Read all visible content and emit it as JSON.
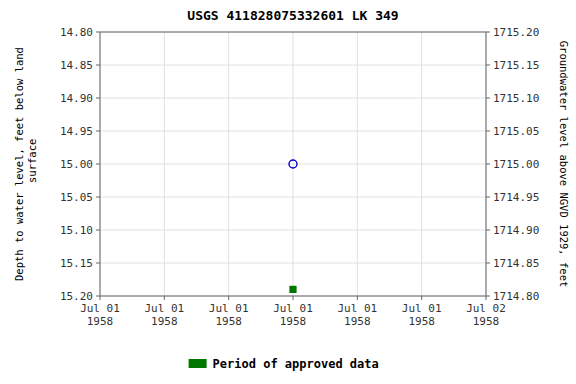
{
  "chart_data": {
    "type": "scatter",
    "title": "USGS 411828075332601 LK   349",
    "ylabel": "Depth to water level, feet below land\n surface",
    "y2label": "Groundwater level above NGVD 1929, feet",
    "categories": [
      "Jul 01\n1958",
      "Jul 01\n1958",
      "Jul 01\n1958",
      "Jul 01\n1958",
      "Jul 01\n1958",
      "Jul 01\n1958",
      "Jul 02\n1958"
    ],
    "ylim": [
      15.2,
      14.8
    ],
    "yticks": [
      {
        "value": 14.8,
        "label": "14.80"
      },
      {
        "value": 14.85,
        "label": "14.85"
      },
      {
        "value": 14.9,
        "label": "14.90"
      },
      {
        "value": 14.95,
        "label": "14.95"
      },
      {
        "value": 15.0,
        "label": "15.00"
      },
      {
        "value": 15.05,
        "label": "15.05"
      },
      {
        "value": 15.1,
        "label": "15.10"
      },
      {
        "value": 15.15,
        "label": "15.15"
      },
      {
        "value": 15.2,
        "label": "15.20"
      }
    ],
    "y2lim": [
      1714.8,
      1715.2
    ],
    "y2ticks": [
      {
        "value": 1714.8,
        "label": "1714.80"
      },
      {
        "value": 1714.85,
        "label": "1714.85"
      },
      {
        "value": 1714.9,
        "label": "1714.90"
      },
      {
        "value": 1714.95,
        "label": "1714.95"
      },
      {
        "value": 1715.0,
        "label": "1715.00"
      },
      {
        "value": 1715.05,
        "label": "1715.05"
      },
      {
        "value": 1715.1,
        "label": "1715.10"
      },
      {
        "value": 1715.15,
        "label": "1715.15"
      },
      {
        "value": 1715.2,
        "label": "1715.20"
      }
    ],
    "series": [
      {
        "color": "#0000cc",
        "marker": "open-circle",
        "values": [
          null,
          null,
          null,
          15.0,
          null,
          null,
          null
        ]
      },
      {
        "name": "Period of approved data",
        "color": "#007700",
        "marker": "square",
        "values": [
          null,
          null,
          null,
          15.19,
          null,
          null,
          null
        ]
      }
    ],
    "grid": true,
    "legend": "bottom"
  }
}
